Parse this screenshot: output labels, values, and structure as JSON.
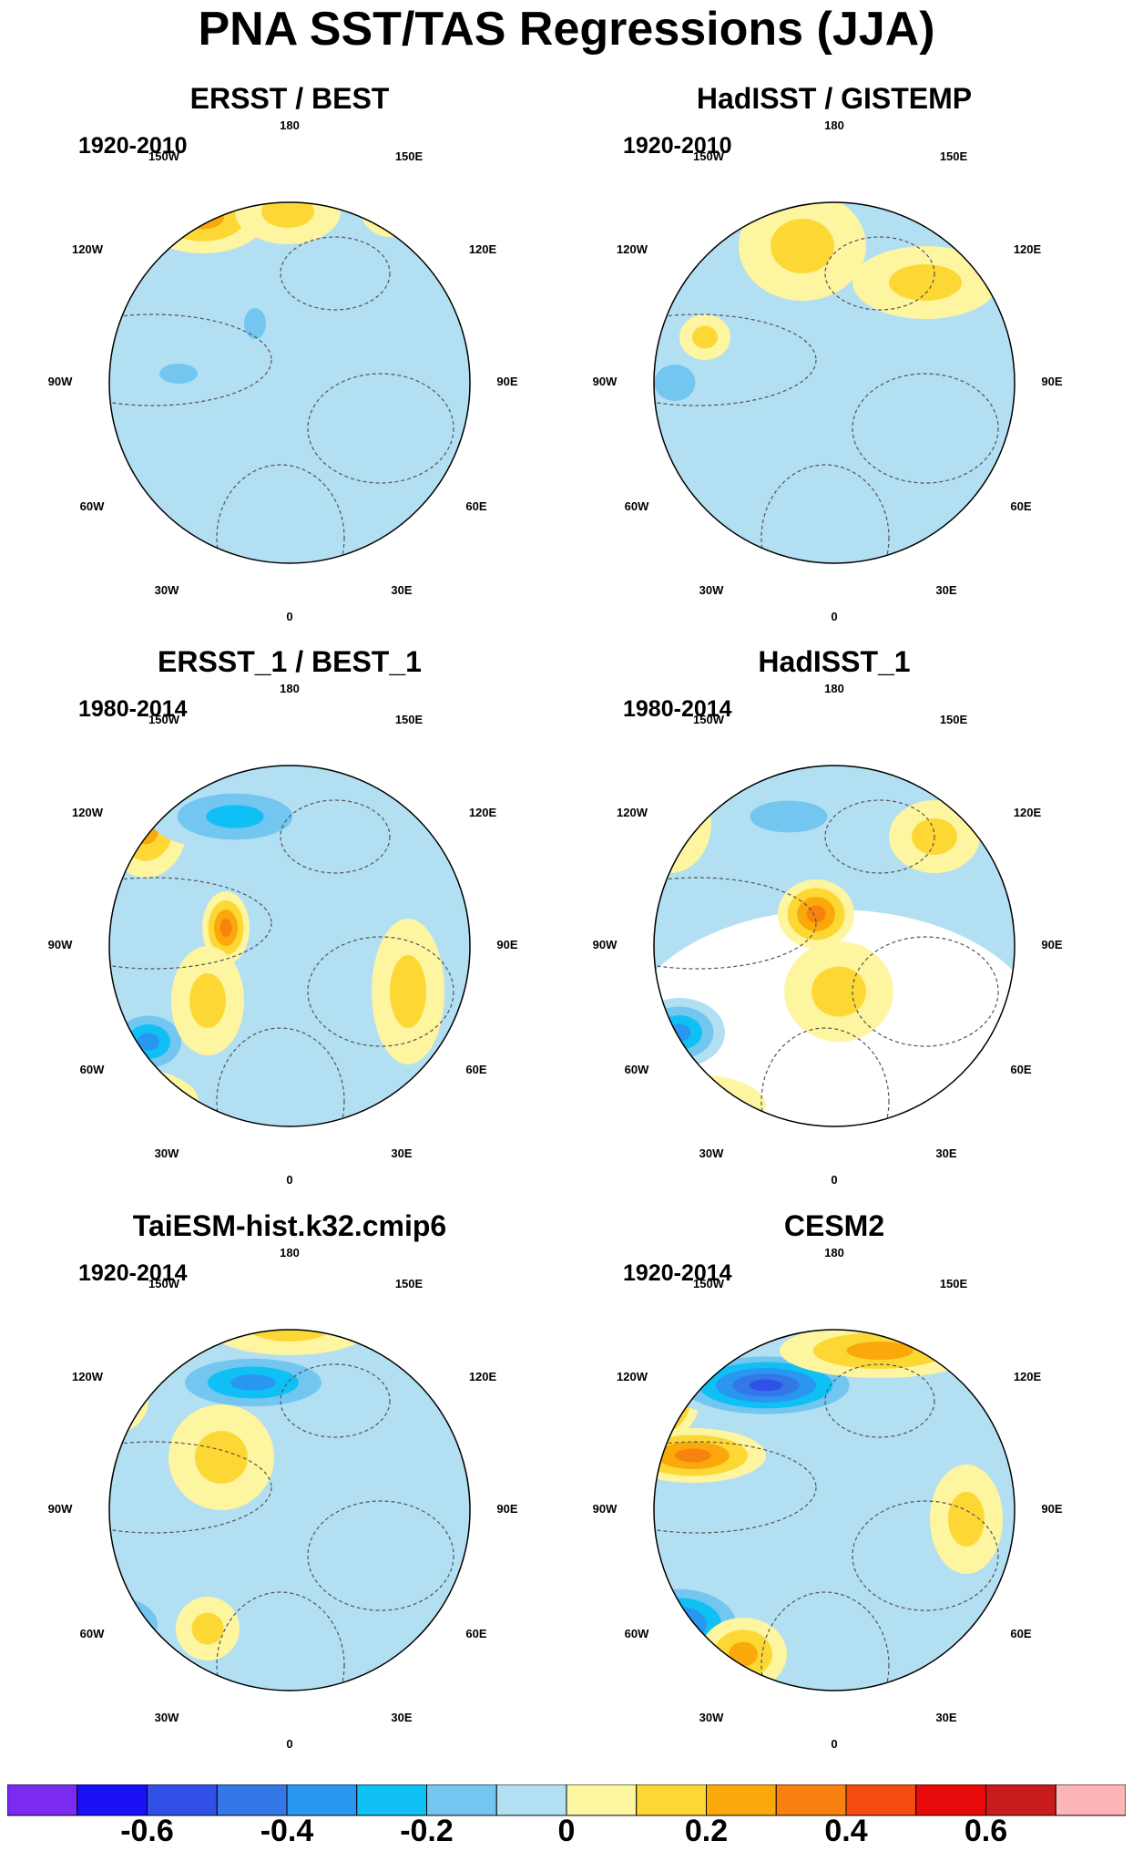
{
  "title": "PNA SST/TAS Regressions (JJA)",
  "panels": [
    {
      "title": "ERSST / BEST",
      "period": "1920-2010",
      "pattern": "ersst"
    },
    {
      "title": "HadISST / GISTEMP",
      "period": "1920-2010",
      "pattern": "hadisst"
    },
    {
      "title": "ERSST_1 / BEST_1",
      "period": "1980-2014",
      "pattern": "ersst1"
    },
    {
      "title": "HadISST_1",
      "period": "1980-2014",
      "pattern": "hadisst1"
    },
    {
      "title": "TaiESM-hist.k32.cmip6",
      "period": "1920-2014",
      "pattern": "taiesm"
    },
    {
      "title": "CESM2",
      "period": "1920-2014",
      "pattern": "cesm2"
    }
  ],
  "longitude_labels": [
    "180",
    "150E",
    "120E",
    "90E",
    "60E",
    "30E",
    "0",
    "30W",
    "60W",
    "90W",
    "120W",
    "150W"
  ],
  "colorbar": {
    "colors": [
      "#7b2bf0",
      "#1a10f5",
      "#3050e8",
      "#3378e6",
      "#2996f0",
      "#0fc0f5",
      "#72c6f0",
      "#b3dff2",
      "#fdf5a0",
      "#fdd835",
      "#fba90a",
      "#f98110",
      "#f54a10",
      "#e80a0a",
      "#c81c1c",
      "#fdb5b8"
    ],
    "tick_labels": [
      "-0.6",
      "-0.4",
      "-0.2",
      "0",
      "0.2",
      "0.4",
      "0.6"
    ]
  }
}
